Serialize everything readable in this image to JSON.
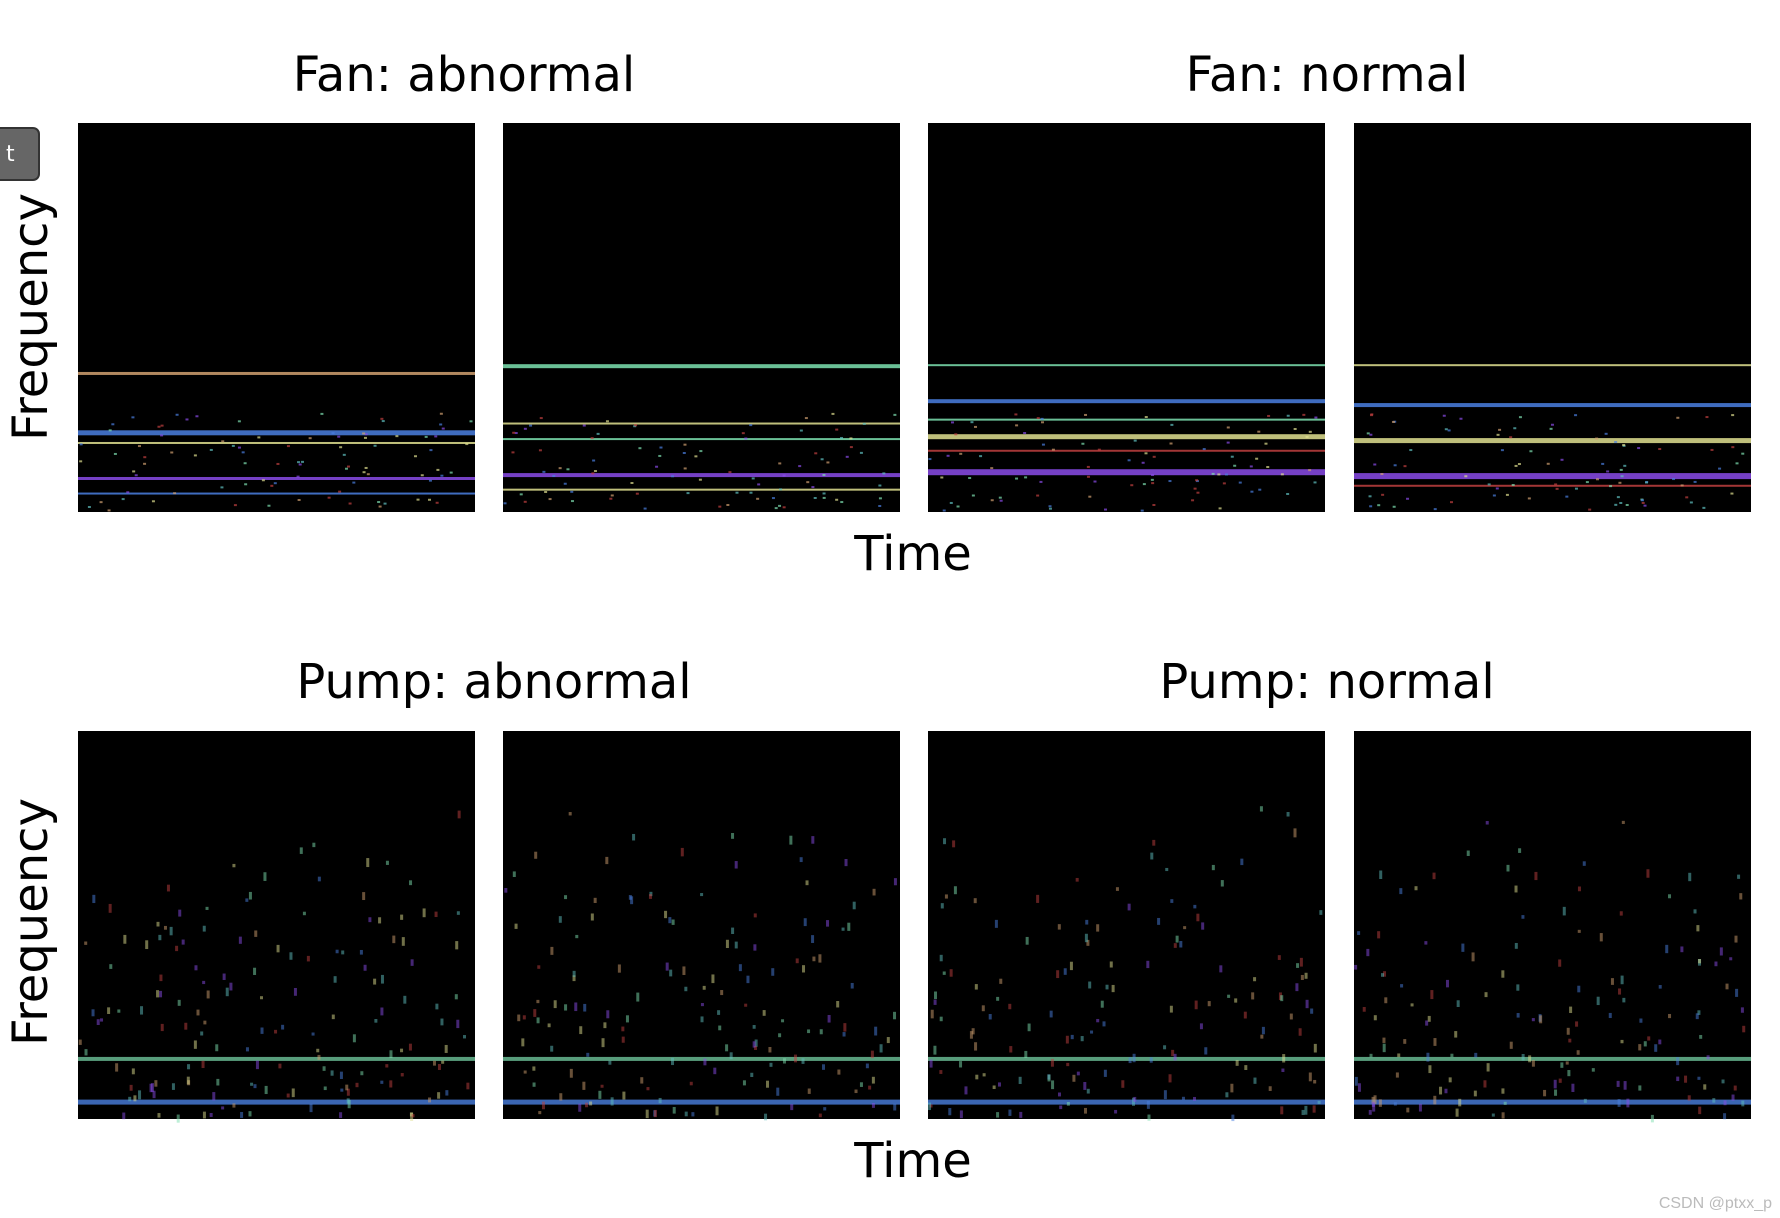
{
  "rows": [
    {
      "left_title": "Fan: abnormal",
      "right_title": "Fan: normal",
      "y_label": "Frequency",
      "x_label": "Time"
    },
    {
      "left_title": "Pump: abnormal",
      "right_title": "Pump: normal",
      "y_label": "Frequency",
      "x_label": "Time"
    }
  ],
  "button": {
    "label": "t"
  },
  "watermark": "CSDN @ptxx_p"
}
